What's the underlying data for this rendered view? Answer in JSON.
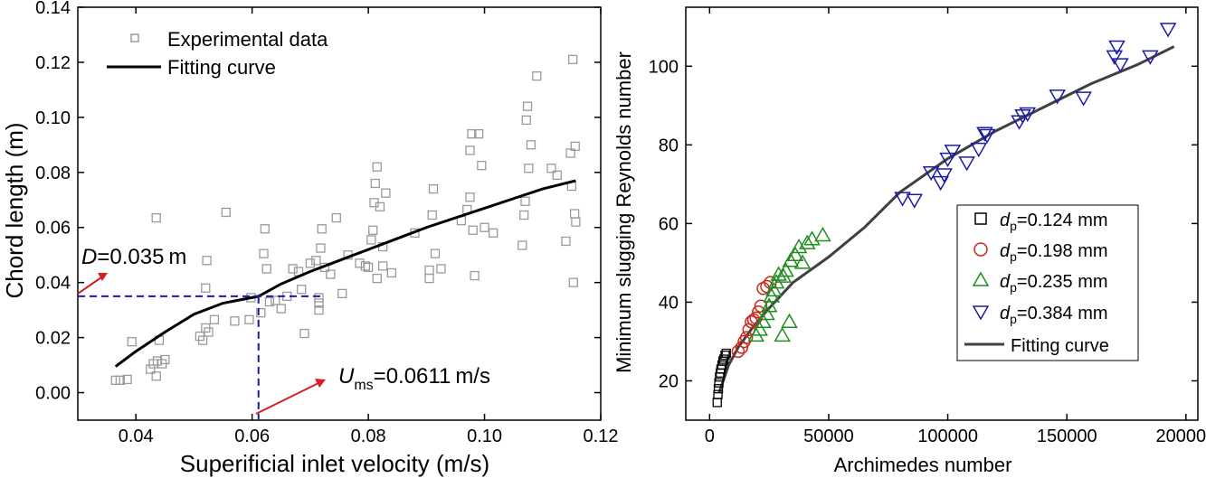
{
  "chart_data": [
    {
      "type": "scatter",
      "xlabel": "Superificial inlet velocity (m/s)",
      "ylabel": "Chord length (m)",
      "xlim": [
        0.03,
        0.12
      ],
      "ylim": [
        -0.01,
        0.14
      ],
      "xticks": [
        "0.04",
        "0.06",
        "0.08",
        "0.10",
        "0.12"
      ],
      "yticks": [
        "0.00",
        "0.02",
        "0.04",
        "0.06",
        "0.08",
        "0.10",
        "0.12",
        "0.14"
      ],
      "xtick_values": [
        0.04,
        0.06,
        0.08,
        0.1,
        0.12
      ],
      "ytick_values": [
        0.0,
        0.02,
        0.04,
        0.06,
        0.08,
        0.1,
        0.12,
        0.14
      ],
      "legend_position": "top-left",
      "series": [
        {
          "name": "Experimental data",
          "marker": "square",
          "color": "#9a9a9a",
          "points": [
            [
              0.0365,
              0.0045
            ],
            [
              0.0373,
              0.0045
            ],
            [
              0.0385,
              0.0048
            ],
            [
              0.0393,
              0.0185
            ],
            [
              0.0425,
              0.0085
            ],
            [
              0.043,
              0.0105
            ],
            [
              0.0435,
              0.006
            ],
            [
              0.0437,
              0.0115
            ],
            [
              0.044,
              0.019
            ],
            [
              0.0445,
              0.0105
            ],
            [
              0.045,
              0.012
            ],
            [
              0.0435,
              0.0635
            ],
            [
              0.051,
              0.0205
            ],
            [
              0.0515,
              0.019
            ],
            [
              0.052,
              0.0235
            ],
            [
              0.0525,
              0.022
            ],
            [
              0.052,
              0.038
            ],
            [
              0.0522,
              0.048
            ],
            [
              0.0535,
              0.0265
            ],
            [
              0.0555,
              0.0655
            ],
            [
              0.057,
              0.026
            ],
            [
              0.0595,
              0.0265
            ],
            [
              0.0598,
              0.0345
            ],
            [
              0.0615,
              0.029
            ],
            [
              0.062,
              0.0505
            ],
            [
              0.0622,
              0.0595
            ],
            [
              0.0625,
              0.045
            ],
            [
              0.063,
              0.033
            ],
            [
              0.064,
              0.0335
            ],
            [
              0.065,
              0.0305
            ],
            [
              0.066,
              0.035
            ],
            [
              0.067,
              0.045
            ],
            [
              0.068,
              0.044
            ],
            [
              0.0685,
              0.0375
            ],
            [
              0.069,
              0.0215
            ],
            [
              0.07,
              0.047
            ],
            [
              0.071,
              0.048
            ],
            [
              0.0715,
              0.0345
            ],
            [
              0.0715,
              0.03
            ],
            [
              0.0715,
              0.0325
            ],
            [
              0.0718,
              0.0525
            ],
            [
              0.072,
              0.0595
            ],
            [
              0.0725,
              0.0455
            ],
            [
              0.0735,
              0.043
            ],
            [
              0.0745,
              0.0635
            ],
            [
              0.0755,
              0.036
            ],
            [
              0.0765,
              0.05
            ],
            [
              0.0785,
              0.047
            ],
            [
              0.0795,
              0.046
            ],
            [
              0.08,
              0.0455
            ],
            [
              0.0805,
              0.0555
            ],
            [
              0.0808,
              0.059
            ],
            [
              0.081,
              0.069
            ],
            [
              0.0812,
              0.076
            ],
            [
              0.0815,
              0.082
            ],
            [
              0.082,
              0.0675
            ],
            [
              0.0825,
              0.053
            ],
            [
              0.083,
              0.0725
            ],
            [
              0.0825,
              0.046
            ],
            [
              0.084,
              0.0435
            ],
            [
              0.0815,
              0.0415
            ],
            [
              0.088,
              0.058
            ],
            [
              0.0905,
              0.0415
            ],
            [
              0.0905,
              0.0445
            ],
            [
              0.091,
              0.0645
            ],
            [
              0.0912,
              0.074
            ],
            [
              0.0915,
              0.0505
            ],
            [
              0.0925,
              0.045
            ],
            [
              0.096,
              0.0625
            ],
            [
              0.097,
              0.0665
            ],
            [
              0.0975,
              0.071
            ],
            [
              0.0975,
              0.088
            ],
            [
              0.0978,
              0.094
            ],
            [
              0.098,
              0.059
            ],
            [
              0.0983,
              0.0425
            ],
            [
              0.099,
              0.094
            ],
            [
              0.0995,
              0.0825
            ],
            [
              0.1,
              0.06
            ],
            [
              0.1015,
              0.058
            ],
            [
              0.1065,
              0.0535
            ],
            [
              0.1068,
              0.0645
            ],
            [
              0.107,
              0.0695
            ],
            [
              0.1072,
              0.099
            ],
            [
              0.1074,
              0.104
            ],
            [
              0.1076,
              0.0815
            ],
            [
              0.108,
              0.09
            ],
            [
              0.109,
              0.115
            ],
            [
              0.1115,
              0.0815
            ],
            [
              0.1125,
              0.079
            ],
            [
              0.114,
              0.055
            ],
            [
              0.1148,
              0.087
            ],
            [
              0.115,
              0.075
            ],
            [
              0.1152,
              0.121
            ],
            [
              0.1153,
              0.04
            ],
            [
              0.1155,
              0.065
            ],
            [
              0.1156,
              0.0895
            ],
            [
              0.1157,
              0.062
            ]
          ]
        },
        {
          "name": "Fitting curve",
          "marker": "line",
          "color": "#000000",
          "points": [
            [
              0.0365,
              0.0095
            ],
            [
              0.04,
              0.015
            ],
            [
              0.045,
              0.022
            ],
            [
              0.05,
              0.0285
            ],
            [
              0.055,
              0.0325
            ],
            [
              0.0611,
              0.035
            ],
            [
              0.065,
              0.0395
            ],
            [
              0.07,
              0.044
            ],
            [
              0.075,
              0.048
            ],
            [
              0.08,
              0.052
            ],
            [
              0.085,
              0.056
            ],
            [
              0.09,
              0.06
            ],
            [
              0.095,
              0.0635
            ],
            [
              0.1,
              0.067
            ],
            [
              0.105,
              0.0705
            ],
            [
              0.11,
              0.074
            ],
            [
              0.1157,
              0.077
            ]
          ]
        }
      ],
      "reference_lines": {
        "x": 0.0611,
        "y": 0.035,
        "color": "#1a1aa8"
      },
      "annotations": {
        "d_prefix": "D",
        "d_value": "=0.035",
        "d_unit": "m",
        "u_prefix": "U",
        "u_sub": "ms",
        "u_value": "=0.0611",
        "u_unit": "m/s",
        "arrow_color": "#d42020"
      }
    },
    {
      "type": "scatter",
      "xlabel": "Archimedes number",
      "ylabel": "Minimum slugging Reynolds number",
      "xlim": [
        -10000,
        205000
      ],
      "ylim": [
        10,
        115
      ],
      "xticks": [
        "0",
        "50000",
        "100000",
        "150000",
        "200000"
      ],
      "yticks": [
        "20",
        "40",
        "60",
        "80",
        "100"
      ],
      "xtick_values": [
        0,
        50000,
        100000,
        150000,
        200000
      ],
      "ytick_values": [
        20,
        40,
        60,
        80,
        100
      ],
      "legend_position": "bottom-right",
      "series": [
        {
          "name_prefix": "d",
          "name_sub": "p",
          "name_value": "=0.124  mm",
          "marker": "square",
          "color": "#000000",
          "points": [
            [
              3200,
              14.5
            ],
            [
              3500,
              16.5
            ],
            [
              3700,
              18.0
            ],
            [
              3900,
              19.5
            ],
            [
              4200,
              21.0
            ],
            [
              4500,
              22.0
            ],
            [
              4800,
              23.0
            ],
            [
              5200,
              24.0
            ],
            [
              5600,
              25.0
            ],
            [
              6000,
              25.5
            ],
            [
              6500,
              26.5
            ],
            [
              7000,
              27.0
            ]
          ]
        },
        {
          "name_prefix": "d",
          "name_sub": "p",
          "name_value": "=0.198  mm",
          "marker": "circle",
          "color": "#c8281e",
          "points": [
            [
              12000,
              27.5
            ],
            [
              13500,
              28.5
            ],
            [
              14500,
              30.0
            ],
            [
              15500,
              31.0
            ],
            [
              16500,
              33.0
            ],
            [
              17500,
              35.0
            ],
            [
              18500,
              35.5
            ],
            [
              19500,
              36.0
            ],
            [
              20500,
              37.5
            ],
            [
              21500,
              39.0
            ],
            [
              22500,
              43.5
            ],
            [
              24000,
              44.0
            ],
            [
              25500,
              45.0
            ]
          ]
        },
        {
          "name_prefix": "d",
          "name_sub": "p",
          "name_value": "=0.235  mm",
          "marker": "triangle-up",
          "color": "#1f8c1f",
          "points": [
            [
              19500,
              31.5
            ],
            [
              21000,
              33.0
            ],
            [
              22500,
              35.0
            ],
            [
              24000,
              37.0
            ],
            [
              25000,
              39.0
            ],
            [
              26000,
              41.5
            ],
            [
              27000,
              43.0
            ],
            [
              28000,
              45.0
            ],
            [
              29000,
              47.0
            ],
            [
              30500,
              31.5
            ],
            [
              31000,
              46.5
            ],
            [
              32000,
              48.0
            ],
            [
              33500,
              35.0
            ],
            [
              34000,
              50.5
            ],
            [
              36000,
              52.0
            ],
            [
              37500,
              54.0
            ],
            [
              39000,
              50.0
            ],
            [
              41000,
              55.0
            ],
            [
              43000,
              56.0
            ],
            [
              47500,
              57.0
            ]
          ]
        },
        {
          "name_prefix": "d",
          "name_sub": "p",
          "name_value": "=0.384  mm",
          "marker": "triangle-down",
          "color": "#1a1aa8",
          "points": [
            [
              81000,
              66.5
            ],
            [
              86000,
              66.0
            ],
            [
              93000,
              73.0
            ],
            [
              97000,
              70.5
            ],
            [
              98500,
              72.5
            ],
            [
              100000,
              76.5
            ],
            [
              102000,
              78.5
            ],
            [
              108000,
              75.5
            ],
            [
              113000,
              79.0
            ],
            [
              115500,
              83.0
            ],
            [
              116500,
              82.5
            ],
            [
              130000,
              86.0
            ],
            [
              131500,
              87.5
            ],
            [
              133500,
              88.0
            ],
            [
              146000,
              92.5
            ],
            [
              157000,
              92.0
            ],
            [
              170000,
              102.5
            ],
            [
              171000,
              105.0
            ],
            [
              172500,
              100.5
            ],
            [
              185000,
              102.5
            ],
            [
              192500,
              109.5
            ]
          ]
        },
        {
          "name": "Fitting curve",
          "marker": "line",
          "color": "#404040",
          "points": [
            [
              4000,
              17.0
            ],
            [
              8000,
              24.0
            ],
            [
              12000,
              28.5
            ],
            [
              18000,
              33.5
            ],
            [
              25000,
              38.5
            ],
            [
              35000,
              45.0
            ],
            [
              50000,
              51.5
            ],
            [
              65000,
              59.0
            ],
            [
              80000,
              68.0
            ],
            [
              100000,
              76.5
            ],
            [
              120000,
              83.5
            ],
            [
              140000,
              89.5
            ],
            [
              160000,
              95.5
            ],
            [
              180000,
              100.5
            ],
            [
              195000,
              105.0
            ]
          ]
        }
      ]
    }
  ]
}
